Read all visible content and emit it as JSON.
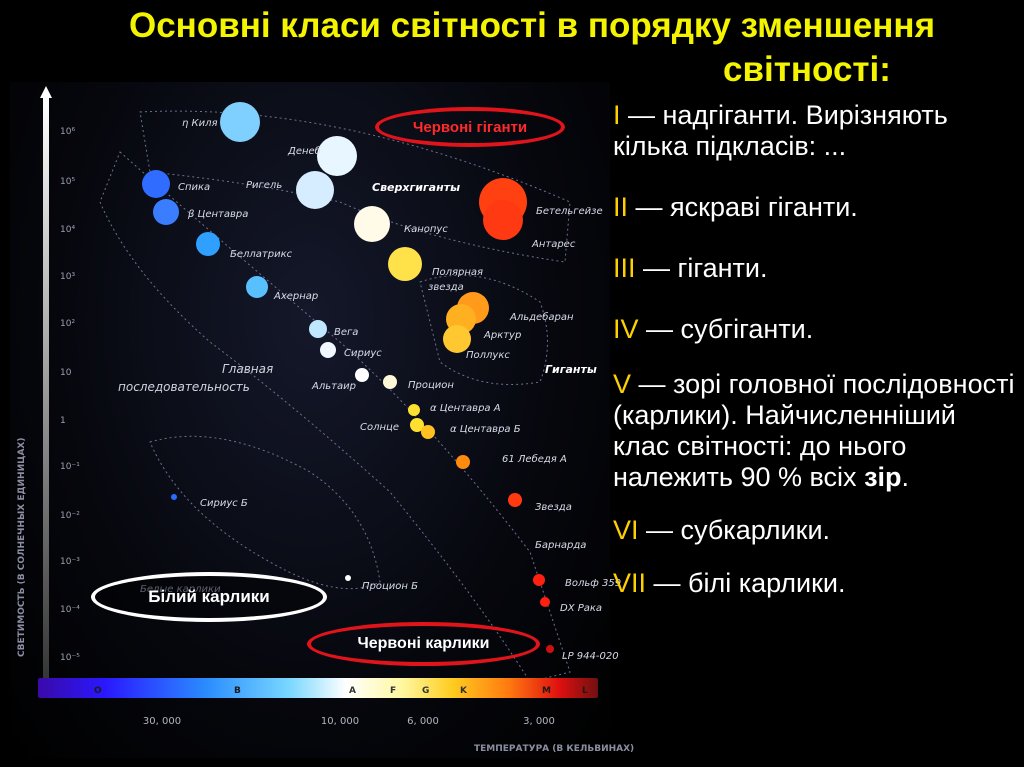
{
  "title": {
    "line1": "Основні класи світності в порядку зменшення",
    "line2": "світності:"
  },
  "luminosity_classes": [
    {
      "numeral": "I",
      "text": " — надгіганти. Вирізняють кілька підкласів: ..."
    },
    {
      "numeral": "II",
      "text": " — яскраві гіганти."
    },
    {
      "numeral": "III",
      "text": " — гіганти."
    },
    {
      "numeral": "IV",
      "text": " — субгіганти."
    },
    {
      "numeral": "V",
      "text": " — зорі головної послідовності (карлики). Найчисленніший клас світності: до нього належить 90 % всіх ",
      "bold_tail": "зір",
      "tail_end": "."
    },
    {
      "numeral": "VI",
      "text": " — субкарлики."
    },
    {
      "numeral": "VII",
      "text": " — білі карлики."
    }
  ],
  "ovals": {
    "red_giants": "Червоні гіганти",
    "white_dwarfs": "Білий карлики",
    "red_dwarfs": "Червоні карлики"
  },
  "diagram": {
    "y_axis_title": "СВЕТИМОСТЬ (В СОЛНЕЧНЫХ ЕДИНИЦАХ)",
    "y_ticks": [
      "10⁶",
      "10⁵",
      "10⁴",
      "10³",
      "10²",
      "10",
      "1",
      "10⁻¹",
      "10⁻²",
      "10⁻³",
      "10⁻⁴",
      "10⁻⁵"
    ],
    "spectral_classes": [
      "O",
      "B",
      "A",
      "F",
      "G",
      "K",
      "M",
      "L"
    ],
    "temperature_ticks": [
      "30, 000",
      "10, 000",
      "6, 000",
      "3, 000"
    ],
    "x_axis_title": "ТЕМПЕРАТУРА (В КЕЛЬВИНАХ)",
    "region_labels": {
      "supergiants": "Сверхгиганты",
      "giants": "Гиганты",
      "main_sequence_1": "Главная",
      "main_sequence_2": "последовательность",
      "white_dwarfs_ru": "Белые карлики"
    },
    "stars": [
      {
        "name": "η Киля",
        "color": "#7fd0ff"
      },
      {
        "name": "Денеб",
        "color": "#e8f6ff"
      },
      {
        "name": "Ригель",
        "color": "#d6ecff"
      },
      {
        "name": "Спика",
        "color": "#2f6cff"
      },
      {
        "name": "β Центавра",
        "color": "#3a7dff"
      },
      {
        "name": "Беллатрикс",
        "color": "#2fa0ff"
      },
      {
        "name": "Ахернар",
        "color": "#58c0ff"
      },
      {
        "name": "Вега",
        "color": "#bfe8ff"
      },
      {
        "name": "Сириус",
        "color": "#f2f8ff"
      },
      {
        "name": "Альтаир",
        "color": "#ffffff"
      },
      {
        "name": "Процион",
        "color": "#fff8d8"
      },
      {
        "name": "Канопус",
        "color": "#fffbe8"
      },
      {
        "name": "Полярная",
        "color": "#ffe24a"
      },
      {
        "name": "звезда",
        "color": "#ffe24a"
      },
      {
        "name": "Бетельгейзе",
        "color": "#ff4010"
      },
      {
        "name": "Антарес",
        "color": "#ff3a12"
      },
      {
        "name": "Альдебаран",
        "color": "#ff9a1a"
      },
      {
        "name": "Арктур",
        "color": "#ffb020"
      },
      {
        "name": "Поллукс",
        "color": "#ffc830"
      },
      {
        "name": "α Центавра А",
        "color": "#ffe030"
      },
      {
        "name": "Солнце",
        "color": "#ffe030"
      },
      {
        "name": "α Центавра Б",
        "color": "#ffc020"
      },
      {
        "name": "61 Лебедя А",
        "color": "#ff8a10"
      },
      {
        "name": "Звезда",
        "color": "#ff3a10"
      },
      {
        "name": "Барнарда",
        "color": "#ff3a10"
      },
      {
        "name": "Вольф 359",
        "color": "#ff2010"
      },
      {
        "name": "DX Рака",
        "color": "#ff2010"
      },
      {
        "name": "LP 944-020",
        "color": "#d01010"
      },
      {
        "name": "Сириус Б",
        "color": "#2a6cff"
      },
      {
        "name": "Процион Б",
        "color": "#ffffff"
      }
    ]
  }
}
